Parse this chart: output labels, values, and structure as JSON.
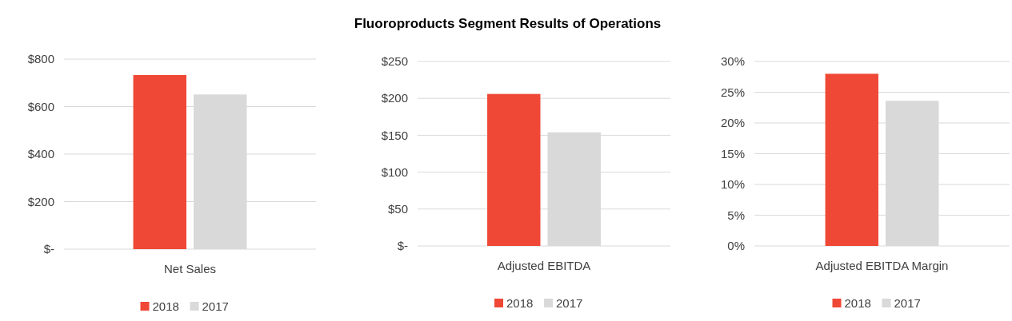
{
  "chart_data": [
    {
      "type": "bar",
      "categories": [
        "Net Sales"
      ],
      "series": [
        {
          "name": "2018",
          "color": "#ef4836",
          "values": [
            733
          ]
        },
        {
          "name": "2017",
          "color": "#d9d9d9",
          "values": [
            651
          ]
        }
      ],
      "ylim": [
        0,
        800
      ],
      "yticks": [
        {
          "value": 0,
          "label": "$-"
        },
        {
          "value": 200,
          "label": "$200"
        },
        {
          "value": 400,
          "label": "$400"
        },
        {
          "value": 600,
          "label": "$600"
        },
        {
          "value": 800,
          "label": "$800"
        }
      ],
      "grid": "y",
      "legend": "bottom"
    },
    {
      "type": "bar",
      "title": "Fluoroproducts Segment Results of Operations",
      "categories": [
        "Adjusted EBITDA"
      ],
      "series": [
        {
          "name": "2018",
          "color": "#ef4836",
          "values": [
            206
          ]
        },
        {
          "name": "2017",
          "color": "#d9d9d9",
          "values": [
            154
          ]
        }
      ],
      "ylim": [
        0,
        250
      ],
      "yticks": [
        {
          "value": 0,
          "label": "$-"
        },
        {
          "value": 50,
          "label": "$50"
        },
        {
          "value": 100,
          "label": "$100"
        },
        {
          "value": 150,
          "label": "$150"
        },
        {
          "value": 200,
          "label": "$200"
        },
        {
          "value": 250,
          "label": "$250"
        }
      ],
      "grid": "y",
      "legend": "bottom"
    },
    {
      "type": "bar",
      "categories": [
        "Adjusted EBITDA Margin"
      ],
      "series": [
        {
          "name": "2018",
          "color": "#ef4836",
          "values": [
            28
          ]
        },
        {
          "name": "2017",
          "color": "#d9d9d9",
          "values": [
            23.6
          ]
        }
      ],
      "ylim": [
        0,
        30
      ],
      "yticks": [
        {
          "value": 0,
          "label": "0%"
        },
        {
          "value": 5,
          "label": "5%"
        },
        {
          "value": 10,
          "label": "10%"
        },
        {
          "value": 15,
          "label": "15%"
        },
        {
          "value": 20,
          "label": "20%"
        },
        {
          "value": 25,
          "label": "25%"
        },
        {
          "value": 30,
          "label": "30%"
        }
      ],
      "grid": "y",
      "legend": "bottom"
    }
  ]
}
